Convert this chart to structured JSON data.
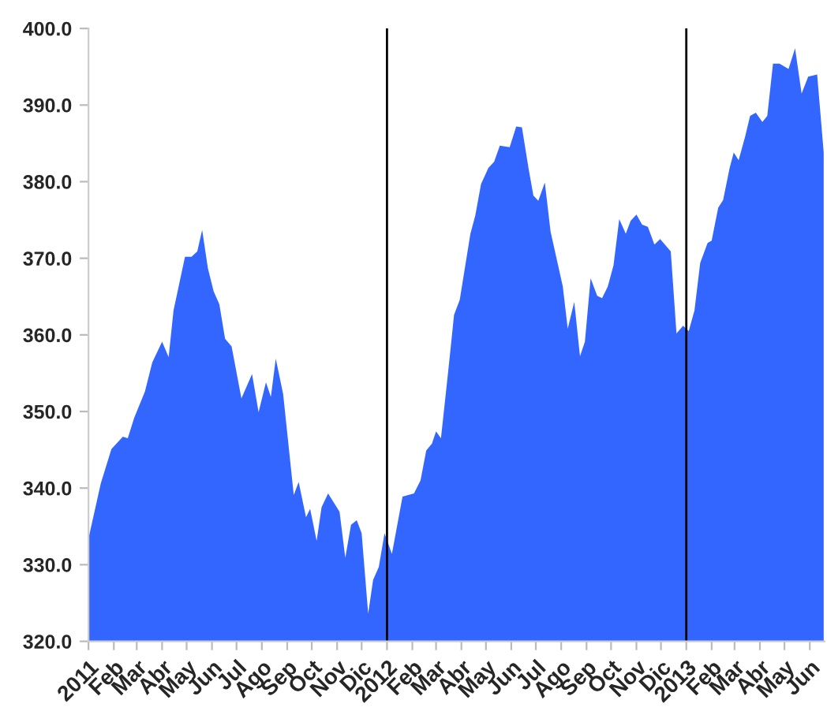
{
  "chart_data": {
    "type": "area",
    "x": [
      "2011-01-01",
      "2011-01-16",
      "2011-01-29",
      "2011-02-12",
      "2011-02-18",
      "2011-02-26",
      "2011-03-11",
      "2011-03-20",
      "2011-04-01",
      "2011-04-09",
      "2011-04-15",
      "2011-04-29",
      "2011-05-07",
      "2011-05-14",
      "2011-05-20",
      "2011-05-27",
      "2011-06-03",
      "2011-06-10",
      "2011-06-17",
      "2011-06-25",
      "2011-07-07",
      "2011-07-20",
      "2011-07-28",
      "2011-08-06",
      "2011-08-12",
      "2011-08-18",
      "2011-08-27",
      "2011-09-09",
      "2011-09-15",
      "2011-09-24",
      "2011-09-29",
      "2011-10-07",
      "2011-10-13",
      "2011-10-21",
      "2011-11-04",
      "2011-11-11",
      "2011-11-18",
      "2011-11-25",
      "2011-12-01",
      "2011-12-09",
      "2011-12-15",
      "2011-12-22",
      "2011-12-29",
      "2012-01-07",
      "2012-01-20",
      "2012-02-03",
      "2012-02-11",
      "2012-02-18",
      "2012-02-25",
      "2012-03-01",
      "2012-03-07",
      "2012-03-17",
      "2012-03-23",
      "2012-03-30",
      "2012-04-12",
      "2012-04-18",
      "2012-04-25",
      "2012-05-04",
      "2012-05-11",
      "2012-05-18",
      "2012-05-30",
      "2012-06-07",
      "2012-06-14",
      "2012-06-22",
      "2012-06-28",
      "2012-07-04",
      "2012-07-12",
      "2012-07-19",
      "2012-08-03",
      "2012-08-09",
      "2012-08-17",
      "2012-08-24",
      "2012-08-30",
      "2012-09-06",
      "2012-09-14",
      "2012-09-20",
      "2012-09-27",
      "2012-10-04",
      "2012-10-11",
      "2012-10-19",
      "2012-10-25",
      "2012-11-01",
      "2012-11-08",
      "2012-11-15",
      "2012-11-23",
      "2012-11-30",
      "2012-12-13",
      "2012-12-20",
      "2012-12-28",
      "2013-01-04",
      "2013-01-11",
      "2013-01-18",
      "2013-01-27",
      "2013-02-01",
      "2013-02-09",
      "2013-02-15",
      "2013-02-23",
      "2013-02-28",
      "2013-03-06",
      "2013-03-14",
      "2013-03-20",
      "2013-03-27",
      "2013-04-04",
      "2013-04-10",
      "2013-04-17",
      "2013-04-25",
      "2013-05-06",
      "2013-05-14",
      "2013-05-22",
      "2013-05-30",
      "2013-06-10",
      "2013-06-18"
    ],
    "series": [
      {
        "color": "#3366ff",
        "values": [
          333.4,
          340.6,
          345.1,
          346.7,
          346.5,
          349.2,
          352.6,
          356.4,
          359.1,
          357.1,
          363.2,
          370.2,
          370.2,
          370.9,
          373.7,
          368.7,
          365.7,
          364.0,
          359.5,
          358.5,
          351.7,
          354.9,
          349.9,
          353.8,
          351.9,
          356.9,
          352.3,
          339.1,
          340.8,
          336.2,
          337.3,
          333.1,
          337.5,
          339.3,
          336.9,
          330.9,
          335.2,
          335.8,
          334.1,
          323.6,
          328.0,
          329.7,
          334.1,
          331.4,
          338.9,
          339.3,
          341.0,
          344.9,
          345.8,
          347.4,
          346.5,
          356.4,
          362.6,
          364.6,
          373.2,
          375.6,
          379.7,
          381.8,
          382.6,
          384.7,
          384.5,
          387.2,
          387.1,
          381.8,
          378.2,
          377.5,
          379.9,
          373.5,
          366.3,
          360.8,
          364.3,
          357.2,
          359.1,
          367.4,
          365.1,
          364.8,
          366.3,
          369.1,
          375.1,
          373.2,
          374.9,
          375.7,
          374.4,
          374.1,
          371.8,
          372.5,
          370.9,
          360.2,
          361.2,
          360.5,
          363.2,
          369.4,
          372.0,
          372.3,
          376.6,
          377.6,
          381.8,
          383.8,
          382.8,
          385.9,
          388.6,
          389.0,
          387.8,
          388.6,
          395.4,
          395.4,
          394.7,
          397.4,
          391.5,
          393.7,
          394.0,
          383.8
        ]
      }
    ],
    "xlim": [
      "2011-01-01",
      "2013-06-19"
    ],
    "xticks": [
      {
        "value": "2011-01-01",
        "label": "2011"
      },
      {
        "value": "2011-02-01",
        "label": "Feb"
      },
      {
        "value": "2011-03-01",
        "label": "Mar"
      },
      {
        "value": "2011-04-01",
        "label": "Abr"
      },
      {
        "value": "2011-05-01",
        "label": "May"
      },
      {
        "value": "2011-06-01",
        "label": "Jun"
      },
      {
        "value": "2011-07-01",
        "label": "Jul"
      },
      {
        "value": "2011-08-01",
        "label": "Ago"
      },
      {
        "value": "2011-09-01",
        "label": "Sep"
      },
      {
        "value": "2011-10-01",
        "label": "Oct"
      },
      {
        "value": "2011-11-01",
        "label": "Nov"
      },
      {
        "value": "2011-12-01",
        "label": "Dic"
      },
      {
        "value": "2012-01-01",
        "label": "2012"
      },
      {
        "value": "2012-02-01",
        "label": "Feb"
      },
      {
        "value": "2012-03-01",
        "label": "Mar"
      },
      {
        "value": "2012-04-01",
        "label": "Abr"
      },
      {
        "value": "2012-05-01",
        "label": "May"
      },
      {
        "value": "2012-06-01",
        "label": "Jun"
      },
      {
        "value": "2012-07-01",
        "label": "Jul"
      },
      {
        "value": "2012-08-01",
        "label": "Ago"
      },
      {
        "value": "2012-09-01",
        "label": "Sep"
      },
      {
        "value": "2012-10-01",
        "label": "Oct"
      },
      {
        "value": "2012-11-01",
        "label": "Nov"
      },
      {
        "value": "2012-12-01",
        "label": "Dic"
      },
      {
        "value": "2013-01-01",
        "label": "2013"
      },
      {
        "value": "2013-02-01",
        "label": "Feb"
      },
      {
        "value": "2013-03-01",
        "label": "Mar"
      },
      {
        "value": "2013-04-01",
        "label": "Abr"
      },
      {
        "value": "2013-05-01",
        "label": "May"
      },
      {
        "value": "2013-06-01",
        "label": "Jun"
      }
    ],
    "ylim": [
      320,
      400
    ],
    "yticks": [
      {
        "value": 320,
        "label": "320.0"
      },
      {
        "value": 330,
        "label": "330.0"
      },
      {
        "value": 340,
        "label": "340.0"
      },
      {
        "value": 350,
        "label": "350.0"
      },
      {
        "value": 360,
        "label": "360.0"
      },
      {
        "value": 370,
        "label": "370.0"
      },
      {
        "value": 380,
        "label": "380.0"
      },
      {
        "value": 390,
        "label": "390.0"
      },
      {
        "value": 400,
        "label": "400.0"
      }
    ],
    "ref_lines": [
      {
        "axis": "x",
        "value": "2012-01-01",
        "color": "#000000"
      },
      {
        "axis": "x",
        "value": "2013-01-01",
        "color": "#000000"
      }
    ],
    "grid": false,
    "legend": false
  }
}
